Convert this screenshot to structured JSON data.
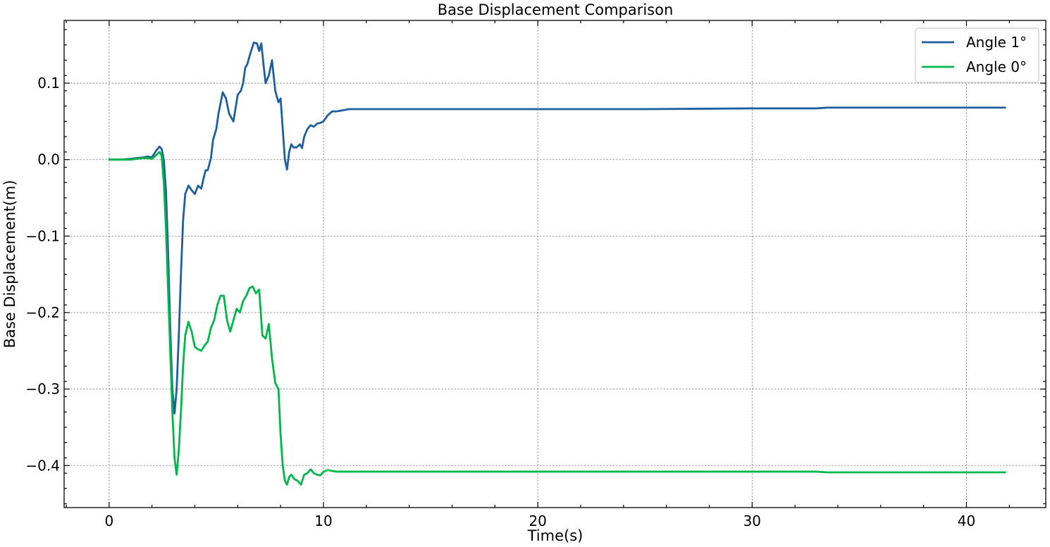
{
  "chart_data": {
    "type": "line",
    "title": "Base Displacement Comparison",
    "xlabel": "Time(s)",
    "ylabel": "Base Displacement(m)",
    "xlim": [
      -2.1,
      43.7
    ],
    "ylim": [
      -0.455,
      0.182
    ],
    "xticks": [
      0,
      10,
      20,
      30,
      40
    ],
    "yticks": [
      -0.4,
      -0.3,
      -0.2,
      -0.1,
      0.0,
      0.1
    ],
    "xtick_labels": [
      "0",
      "10",
      "20",
      "30",
      "40"
    ],
    "ytick_labels": [
      "−0.4",
      "−0.3",
      "−0.2",
      "−0.1",
      "0.0",
      "0.1"
    ],
    "grid": true,
    "legend_position": "top-right",
    "series": [
      {
        "name": "Angle 1°",
        "color": "#1f5fa0",
        "x": [
          0,
          0.5,
          1.0,
          1.3,
          1.6,
          1.8,
          2.0,
          2.2,
          2.35,
          2.45,
          2.55,
          2.65,
          2.75,
          2.85,
          2.95,
          3.05,
          3.15,
          3.25,
          3.35,
          3.45,
          3.55,
          3.7,
          3.85,
          4.0,
          4.15,
          4.3,
          4.4,
          4.5,
          4.6,
          4.75,
          4.85,
          5.0,
          5.1,
          5.3,
          5.45,
          5.6,
          5.8,
          6.0,
          6.15,
          6.25,
          6.35,
          6.45,
          6.6,
          6.75,
          6.9,
          7.0,
          7.1,
          7.2,
          7.3,
          7.45,
          7.6,
          7.75,
          7.9,
          8.0,
          8.1,
          8.2,
          8.3,
          8.4,
          8.5,
          8.6,
          8.75,
          8.9,
          9.0,
          9.1,
          9.25,
          9.4,
          9.55,
          9.7,
          9.85,
          10.0,
          10.2,
          10.4,
          10.6,
          10.8,
          11.0,
          11.2,
          11.6,
          12.0,
          15.0,
          20.0,
          25.0,
          30.0,
          33.0,
          33.5,
          33.7,
          36.0,
          40.0,
          41.8
        ],
        "values": [
          0.0,
          0.0,
          0.001,
          0.002,
          0.003,
          0.004,
          0.003,
          0.012,
          0.017,
          0.014,
          0.0,
          -0.04,
          -0.12,
          -0.22,
          -0.3,
          -0.332,
          -0.3,
          -0.23,
          -0.15,
          -0.08,
          -0.045,
          -0.034,
          -0.04,
          -0.045,
          -0.034,
          -0.038,
          -0.025,
          -0.014,
          -0.014,
          0.002,
          0.026,
          0.04,
          0.06,
          0.088,
          0.08,
          0.06,
          0.05,
          0.085,
          0.09,
          0.1,
          0.12,
          0.125,
          0.14,
          0.153,
          0.152,
          0.142,
          0.152,
          0.125,
          0.1,
          0.11,
          0.13,
          0.09,
          0.075,
          0.08,
          0.04,
          0.0,
          -0.013,
          0.01,
          0.02,
          0.016,
          0.016,
          0.02,
          0.015,
          0.03,
          0.04,
          0.045,
          0.043,
          0.047,
          0.048,
          0.05,
          0.058,
          0.063,
          0.063,
          0.064,
          0.065,
          0.066,
          0.066,
          0.066,
          0.066,
          0.066,
          0.066,
          0.067,
          0.067,
          0.068,
          0.068,
          0.068,
          0.068,
          0.068
        ]
      },
      {
        "name": "Angle 0°",
        "color": "#00b84a",
        "x": [
          0,
          0.5,
          1.0,
          1.3,
          1.6,
          1.8,
          2.0,
          2.2,
          2.35,
          2.45,
          2.55,
          2.65,
          2.75,
          2.85,
          2.95,
          3.05,
          3.15,
          3.25,
          3.35,
          3.45,
          3.55,
          3.7,
          3.85,
          4.0,
          4.15,
          4.3,
          4.45,
          4.6,
          4.75,
          4.9,
          5.05,
          5.2,
          5.35,
          5.5,
          5.65,
          5.8,
          5.95,
          6.1,
          6.25,
          6.4,
          6.55,
          6.7,
          6.85,
          7.0,
          7.15,
          7.3,
          7.45,
          7.6,
          7.75,
          7.9,
          8.0,
          8.1,
          8.2,
          8.3,
          8.4,
          8.5,
          8.65,
          8.8,
          8.95,
          9.1,
          9.25,
          9.4,
          9.55,
          9.7,
          9.85,
          10.0,
          10.2,
          10.4,
          10.6,
          10.8,
          11.0,
          11.3,
          11.7,
          12.0,
          15.0,
          20.0,
          25.0,
          30.0,
          33.0,
          33.5,
          33.7,
          36.0,
          40.0,
          41.8
        ],
        "values": [
          0.0,
          0.0,
          0.0,
          0.001,
          0.002,
          0.002,
          0.001,
          0.006,
          0.01,
          0.005,
          -0.03,
          -0.09,
          -0.17,
          -0.25,
          -0.33,
          -0.39,
          -0.412,
          -0.38,
          -0.33,
          -0.27,
          -0.23,
          -0.212,
          -0.225,
          -0.245,
          -0.248,
          -0.25,
          -0.243,
          -0.238,
          -0.22,
          -0.21,
          -0.19,
          -0.178,
          -0.178,
          -0.21,
          -0.225,
          -0.21,
          -0.195,
          -0.2,
          -0.185,
          -0.178,
          -0.168,
          -0.166,
          -0.175,
          -0.17,
          -0.23,
          -0.234,
          -0.215,
          -0.26,
          -0.292,
          -0.3,
          -0.36,
          -0.4,
          -0.42,
          -0.425,
          -0.415,
          -0.412,
          -0.418,
          -0.42,
          -0.425,
          -0.412,
          -0.41,
          -0.405,
          -0.41,
          -0.412,
          -0.413,
          -0.408,
          -0.406,
          -0.407,
          -0.408,
          -0.408,
          -0.408,
          -0.408,
          -0.408,
          -0.408,
          -0.408,
          -0.408,
          -0.408,
          -0.408,
          -0.408,
          -0.409,
          -0.409,
          -0.409,
          -0.409,
          -0.409
        ]
      }
    ]
  }
}
